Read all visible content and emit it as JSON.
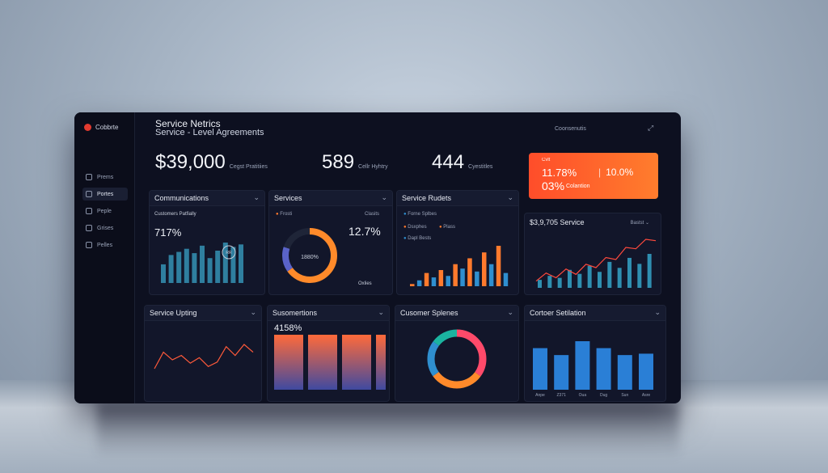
{
  "app": {
    "logo_text": "Cobbrte"
  },
  "sidebar": {
    "items": [
      {
        "label": "Prems",
        "active": false
      },
      {
        "label": "Portes",
        "active": true
      },
      {
        "label": "Peple",
        "active": false
      },
      {
        "label": "Grises",
        "active": false
      },
      {
        "label": "Pelles",
        "active": false
      }
    ]
  },
  "header": {
    "title": "Service Netrics",
    "subtitle": "Service - Level Agreements",
    "right_label": "Coonsenutis"
  },
  "kpis": [
    {
      "value": "$39,000",
      "label": "Cegst Pratitiies"
    },
    {
      "value": "589",
      "label": "Cellr Hyhtry"
    },
    {
      "value": "444",
      "label": "Cyestitles"
    }
  ],
  "promo": {
    "tag": "Cvlt",
    "value_a": "11.78%",
    "value_b": "10.0%",
    "value_c": "03%",
    "label": "Colantion",
    "color_start": "#ff4d2a",
    "color_end": "#ff7d2d"
  },
  "panels": {
    "communications": {
      "title": "Communications",
      "subtitle": "Customers Patfially",
      "big_value": "717%",
      "badge": "RR"
    },
    "services": {
      "title": "Services",
      "legend_a": "Frosti",
      "legend_b": "Clasits",
      "big_value": "12.7%",
      "donut_center": "1880%",
      "footer": "Oxlies"
    },
    "service_rudets": {
      "title": "Service Rudets",
      "legend": [
        "Forne Splbes",
        "Dsxphes",
        "Plass",
        "Dapl Bests"
      ]
    },
    "service_line": {
      "title": "$3,9,705 Service",
      "filter": "Bastst"
    },
    "service_upting": {
      "title": "Service Upting"
    },
    "susomertions": {
      "title": "Susomertions",
      "big_value": "4158%"
    },
    "cusomer_splenes": {
      "title": "Cusomer Splenes"
    },
    "cortoer_setilation": {
      "title": "Cortoer Setilation"
    }
  },
  "chart_data": [
    {
      "type": "bar",
      "title": "Communications",
      "values": [
        30,
        45,
        50,
        55,
        48,
        60,
        40,
        52,
        65,
        58,
        62
      ],
      "color": "#2f7f9f"
    },
    {
      "type": "pie",
      "title": "Services",
      "values": [
        65,
        15,
        20
      ],
      "colors": [
        "#ff8a2a",
        "#5a63c8",
        "#1f2538"
      ]
    },
    {
      "type": "bar",
      "title": "Service Rudets",
      "series": [
        {
          "values": [
            3,
            8,
            18,
            12,
            22,
            14,
            30,
            24,
            38,
            20,
            46,
            30,
            55,
            18
          ],
          "colors": [
            "#ff7a2d",
            "#2f8fcf"
          ]
        }
      ]
    },
    {
      "type": "line",
      "title": "$3,9,705 Service",
      "values": [
        10,
        22,
        15,
        28,
        20,
        35,
        30,
        45,
        42,
        60,
        58,
        72,
        70
      ],
      "bars": [
        8,
        12,
        10,
        18,
        14,
        22,
        16,
        26,
        20,
        30,
        24,
        34
      ],
      "line_color": "#ff4a3d",
      "bar_color": "#2f8fb0"
    },
    {
      "type": "line",
      "title": "Service Upting",
      "values": [
        40,
        55,
        48,
        52,
        45,
        50,
        42,
        46,
        60,
        52,
        62,
        55
      ],
      "color": "#ff5a3a"
    },
    {
      "type": "bar",
      "title": "Susomertions",
      "values": [
        80,
        80,
        80,
        80
      ],
      "gradient": [
        "#ff6a3a",
        "#3f4aa0"
      ]
    },
    {
      "type": "pie",
      "title": "Cusomer Splenes",
      "values": [
        35,
        30,
        20,
        15
      ],
      "colors": [
        "#ff4a6a",
        "#ff8a2a",
        "#2f8fcf",
        "#1bb4a0"
      ]
    },
    {
      "type": "bar",
      "title": "Cortoer Setilation",
      "categories": [
        "Anpe",
        "Z371",
        "Oua",
        "Dug",
        "Sun",
        "Asre"
      ],
      "values": [
        60,
        50,
        70,
        60,
        50,
        52
      ],
      "color": "#2a7fd6"
    }
  ]
}
